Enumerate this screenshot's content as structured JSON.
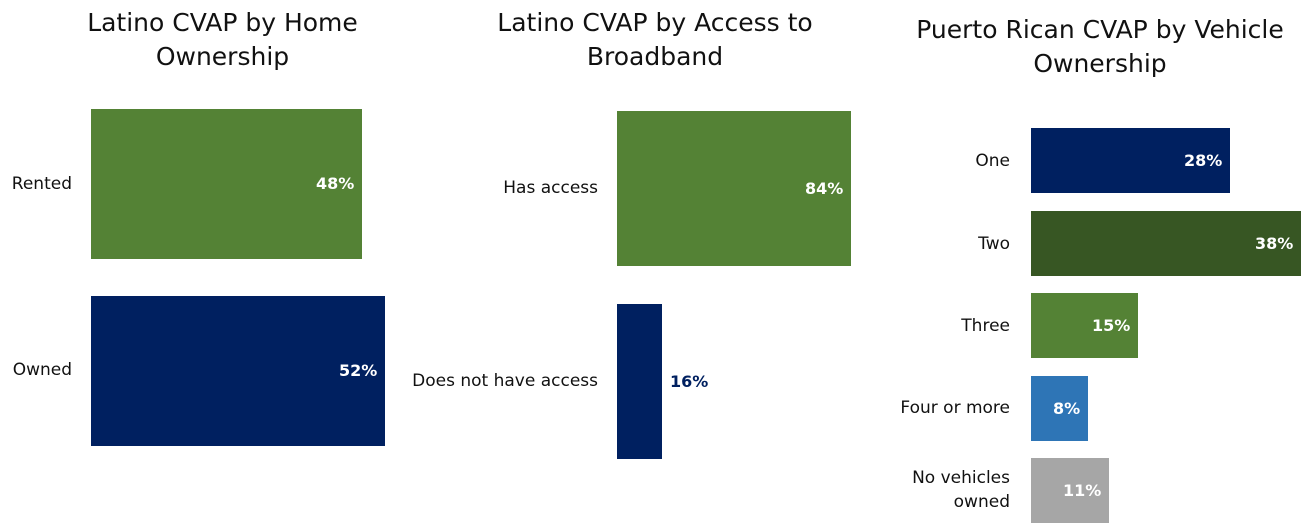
{
  "chart_data": [
    {
      "type": "bar",
      "orientation": "horizontal",
      "title": "Latino CVAP by Home Ownership",
      "categories": [
        "Rented",
        "Owned"
      ],
      "values": [
        48,
        52
      ],
      "value_labels": [
        "48%",
        "52%"
      ],
      "colors": [
        "#548235",
        "#002060"
      ],
      "label_colors": [
        "#ffffff",
        "#ffffff"
      ],
      "xlim": [
        0,
        52
      ],
      "grid": false,
      "legend": "none"
    },
    {
      "type": "bar",
      "orientation": "horizontal",
      "title": "Latino CVAP by Access to Broadband",
      "categories": [
        "Has access",
        "Does not have access"
      ],
      "values": [
        84,
        16
      ],
      "value_labels": [
        "84%",
        "16%"
      ],
      "colors": [
        "#548235",
        "#002060"
      ],
      "label_colors": [
        "#ffffff",
        "#002060"
      ],
      "xlim": [
        0,
        84
      ],
      "grid": false,
      "legend": "none"
    },
    {
      "type": "bar",
      "orientation": "horizontal",
      "title": "Puerto Rican CVAP by Vehicle Ownership",
      "categories": [
        "One",
        "Two",
        "Three",
        "Four or more",
        "No vehicles owned"
      ],
      "values": [
        28,
        38,
        15,
        8,
        11
      ],
      "value_labels": [
        "28%",
        "38%",
        "15%",
        "8%",
        "11%"
      ],
      "colors": [
        "#002060",
        "#375623",
        "#548235",
        "#2E75B6",
        "#A6A6A6"
      ],
      "label_colors": [
        "#ffffff",
        "#ffffff",
        "#ffffff",
        "#ffffff",
        "#ffffff"
      ],
      "xlim": [
        0,
        38
      ],
      "grid": false,
      "legend": "none"
    }
  ]
}
